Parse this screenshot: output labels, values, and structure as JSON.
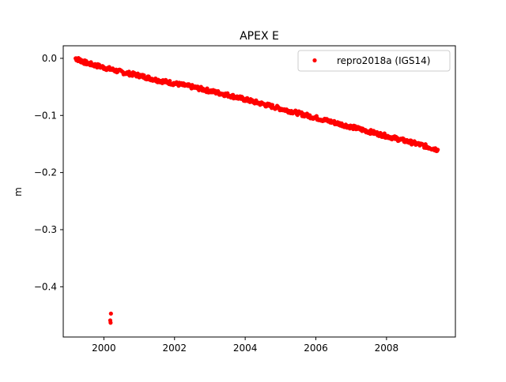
{
  "chart_data": {
    "type": "scatter",
    "title": "APEX E",
    "xlabel": "",
    "ylabel": "m",
    "xlim": [
      1998.85,
      2009.95
    ],
    "ylim": [
      -0.488,
      0.022
    ],
    "xticks": [
      2000,
      2002,
      2004,
      2006,
      2008
    ],
    "xtick_labels": [
      "2000",
      "2002",
      "2004",
      "2006",
      "2008"
    ],
    "yticks": [
      0.0,
      -0.1,
      -0.2,
      -0.3,
      -0.4
    ],
    "ytick_labels": [
      "0.0",
      "−0.1",
      "−0.2",
      "−0.3",
      "−0.4"
    ],
    "grid": false,
    "legend_position": "upper right",
    "series": [
      {
        "name": "repro2018a (IGS14)",
        "color": "#ff0000",
        "marker": "circle",
        "trend": [
          {
            "x": 1999.2,
            "y": 0.0
          },
          {
            "x": 1999.5,
            "y": -0.008
          },
          {
            "x": 2000.0,
            "y": -0.016
          },
          {
            "x": 2000.5,
            "y": -0.024
          },
          {
            "x": 2001.0,
            "y": -0.03
          },
          {
            "x": 2001.5,
            "y": -0.038
          },
          {
            "x": 2002.0,
            "y": -0.044
          },
          {
            "x": 2002.5,
            "y": -0.05
          },
          {
            "x": 2003.0,
            "y": -0.057
          },
          {
            "x": 2003.5,
            "y": -0.064
          },
          {
            "x": 2004.0,
            "y": -0.072
          },
          {
            "x": 2004.5,
            "y": -0.08
          },
          {
            "x": 2005.0,
            "y": -0.088
          },
          {
            "x": 2005.5,
            "y": -0.096
          },
          {
            "x": 2006.0,
            "y": -0.104
          },
          {
            "x": 2006.5,
            "y": -0.112
          },
          {
            "x": 2007.0,
            "y": -0.12
          },
          {
            "x": 2007.5,
            "y": -0.128
          },
          {
            "x": 2008.0,
            "y": -0.136
          },
          {
            "x": 2008.5,
            "y": -0.144
          },
          {
            "x": 2009.0,
            "y": -0.152
          },
          {
            "x": 2009.45,
            "y": -0.16
          }
        ],
        "outliers": [
          {
            "x": 2000.2,
            "y": -0.447
          },
          {
            "x": 2000.18,
            "y": -0.459
          },
          {
            "x": 2000.19,
            "y": -0.463
          }
        ]
      }
    ]
  }
}
